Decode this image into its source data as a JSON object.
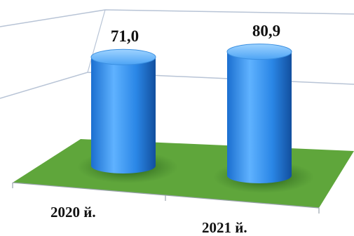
{
  "chart_data": {
    "type": "bar",
    "style": "3d-cylinder",
    "categories": [
      "2020 й.",
      "2021 й."
    ],
    "values": [
      71.0,
      80.9
    ],
    "data_labels": [
      "71,0",
      "80,9"
    ],
    "title": "",
    "xlabel": "",
    "ylabel": "",
    "ylim": [
      0,
      100
    ],
    "grid": true,
    "legend": "none",
    "colors": {
      "bar": "#2f8fe8",
      "bar_dark": "#1560b5",
      "bar_light": "#7cc2ff",
      "floor": "#5fa63b",
      "gridline": "#b8c4d6"
    }
  }
}
